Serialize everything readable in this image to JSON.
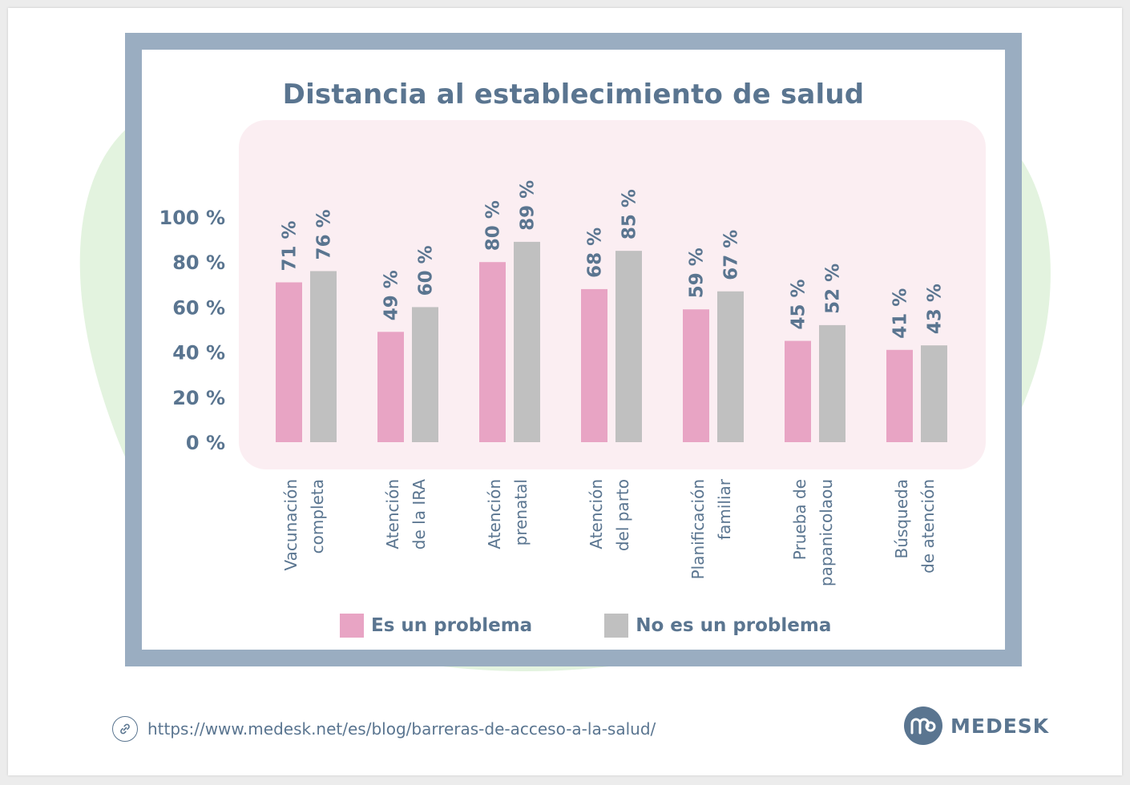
{
  "colors": {
    "frame": "#9aadc1",
    "plot_background": "#fbeef2",
    "blob": "#e3f3df",
    "text": "#5a7590",
    "series_problem": "#e8a4c4",
    "series_no_problem": "#c0c0c0"
  },
  "chart_data": {
    "type": "bar",
    "title": "Distancia al establecimiento de salud",
    "xlabel": "",
    "ylabel": "",
    "ylim": [
      0,
      100
    ],
    "yticks": [
      "0 %",
      "20 %",
      "40 %",
      "60 %",
      "80 %",
      "100 %"
    ],
    "categories": [
      [
        "Vacunación",
        "completa"
      ],
      [
        "Atención",
        "de la IRA"
      ],
      [
        "Atención",
        "prenatal"
      ],
      [
        "Atención",
        "del parto"
      ],
      [
        "Planificación",
        "familiar"
      ],
      [
        "Prueba de",
        "papanicolaou"
      ],
      [
        "Búsqueda",
        "de atención"
      ]
    ],
    "series": [
      {
        "name": "Es un problema",
        "color": "#e8a4c4",
        "values": [
          71,
          49,
          80,
          68,
          59,
          45,
          41
        ],
        "labels": [
          "71 %",
          "49 %",
          "80 %",
          "68 %",
          "59 %",
          "45 %",
          "41 %"
        ]
      },
      {
        "name": "No es un problema",
        "color": "#c0c0c0",
        "values": [
          76,
          60,
          89,
          85,
          67,
          52,
          43
        ],
        "labels": [
          "76 %",
          "60 %",
          "89 %",
          "85 %",
          "67 %",
          "52 %",
          "43 %"
        ]
      }
    ],
    "legend": "bottom"
  },
  "footer": {
    "url": "https://www.medesk.net/es/blog/barreras-de-acceso-a-la-salud/",
    "link_icon": "link-icon",
    "brand": "MEDESK",
    "brand_icon": "medesk-logo-icon"
  }
}
